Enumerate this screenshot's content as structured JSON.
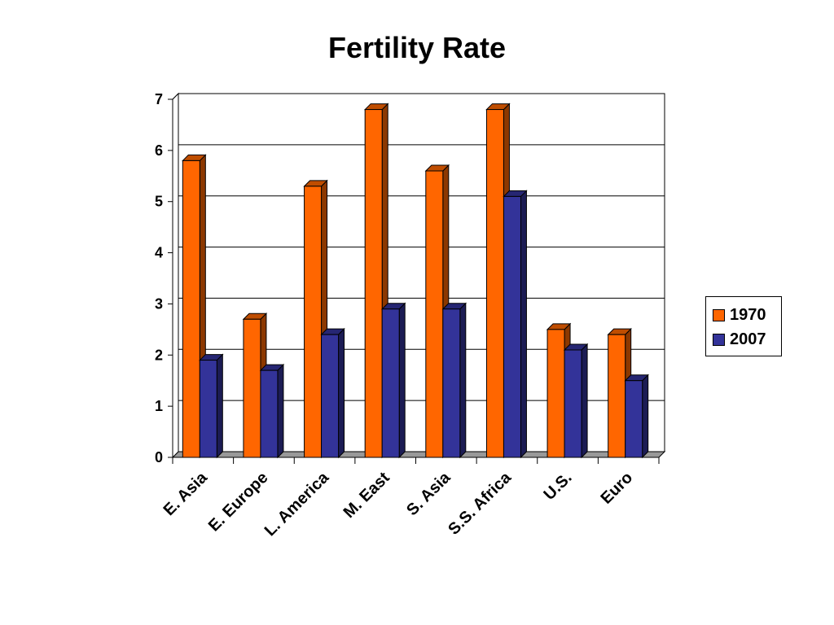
{
  "chart_data": {
    "type": "bar",
    "title": "Fertility Rate",
    "xlabel": "",
    "ylabel": "",
    "categories": [
      "E. Asia",
      "E. Europe",
      "L. America",
      "M. East",
      "S. Asia",
      "S.S. Africa",
      "U.S.",
      "Euro"
    ],
    "series": [
      {
        "name": "1970",
        "values": [
          5.8,
          2.7,
          5.3,
          6.8,
          5.6,
          6.8,
          2.5,
          2.4
        ],
        "color": "#FF6600"
      },
      {
        "name": "2007",
        "values": [
          1.9,
          1.7,
          2.4,
          2.9,
          2.9,
          5.1,
          2.1,
          1.5
        ],
        "color": "#333399"
      }
    ],
    "ylim": [
      0,
      7
    ],
    "yticks": [
      0,
      1,
      2,
      3,
      4,
      5,
      6,
      7
    ],
    "grid": true,
    "legend_position": "right",
    "style": "3d-clustered-column"
  }
}
